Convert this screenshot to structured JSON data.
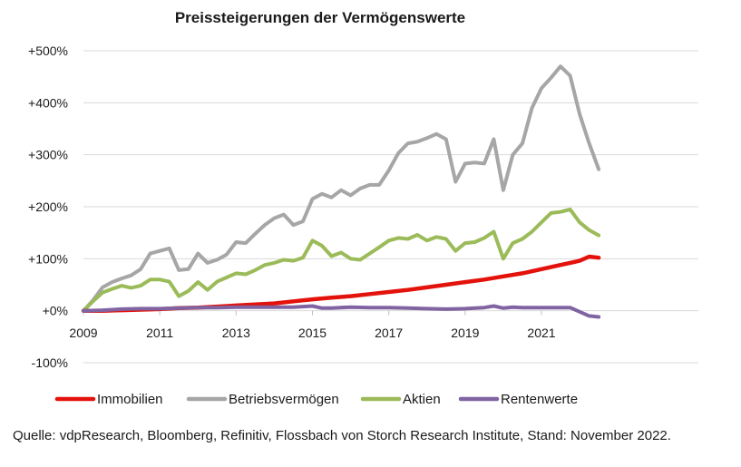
{
  "chart_data": {
    "type": "line",
    "title": "Preissteigerungen der Vermögenswerte",
    "xlabel": "",
    "ylabel": "",
    "xlim": [
      2009,
      2022.75
    ],
    "ylim": [
      -100,
      500
    ],
    "y_ticks": [
      -100,
      0,
      100,
      200,
      300,
      400,
      500
    ],
    "y_tick_labels": [
      "-100%",
      "+0%",
      "+100%",
      "+200%",
      "+300%",
      "+400%",
      "+500%"
    ],
    "x_ticks": [
      2009,
      2011,
      2013,
      2015,
      2017,
      2019,
      2021
    ],
    "x_tick_labels": [
      "2009",
      "2011",
      "2013",
      "2015",
      "2017",
      "2019",
      "2021"
    ],
    "grid": true,
    "legend_position": "bottom",
    "series": [
      {
        "name": "Immobilien",
        "color": "#e3120b",
        "x": [
          2009,
          2009.5,
          2010,
          2010.5,
          2011,
          2011.5,
          2012,
          2012.5,
          2013,
          2013.5,
          2014,
          2014.5,
          2015,
          2015.5,
          2016,
          2016.5,
          2017,
          2017.5,
          2018,
          2018.5,
          2019,
          2019.5,
          2020,
          2020.5,
          2021,
          2021.5,
          2022,
          2022.25,
          2022.5
        ],
        "y": [
          0,
          0,
          1,
          2,
          3,
          5,
          6,
          8,
          10,
          12,
          14,
          18,
          22,
          25,
          28,
          32,
          36,
          40,
          45,
          50,
          55,
          60,
          66,
          72,
          80,
          88,
          96,
          104,
          102
        ]
      },
      {
        "name": "Betriebsvermögen",
        "color": "#a6a6a6",
        "x": [
          2009,
          2009.25,
          2009.5,
          2009.75,
          2010,
          2010.25,
          2010.5,
          2010.75,
          2011,
          2011.25,
          2011.5,
          2011.75,
          2012,
          2012.25,
          2012.5,
          2012.75,
          2013,
          2013.25,
          2013.5,
          2013.75,
          2014,
          2014.25,
          2014.5,
          2014.75,
          2015,
          2015.25,
          2015.5,
          2015.75,
          2016,
          2016.25,
          2016.5,
          2016.75,
          2017,
          2017.25,
          2017.5,
          2017.75,
          2018,
          2018.25,
          2018.5,
          2018.75,
          2019,
          2019.25,
          2019.5,
          2019.75,
          2020,
          2020.25,
          2020.5,
          2020.75,
          2021,
          2021.25,
          2021.5,
          2021.75,
          2022,
          2022.25,
          2022.5
        ],
        "y": [
          0,
          20,
          45,
          55,
          62,
          68,
          80,
          110,
          115,
          120,
          78,
          80,
          110,
          92,
          98,
          108,
          132,
          130,
          148,
          165,
          178,
          185,
          165,
          172,
          215,
          225,
          218,
          232,
          222,
          235,
          242,
          242,
          270,
          303,
          322,
          325,
          332,
          340,
          330,
          248,
          283,
          285,
          283,
          330,
          232,
          300,
          322,
          390,
          428,
          448,
          470,
          452,
          378,
          322,
          272
        ]
      },
      {
        "name": "Aktien",
        "color": "#9bbb59",
        "x": [
          2009,
          2009.25,
          2009.5,
          2009.75,
          2010,
          2010.25,
          2010.5,
          2010.75,
          2011,
          2011.25,
          2011.5,
          2011.75,
          2012,
          2012.25,
          2012.5,
          2012.75,
          2013,
          2013.25,
          2013.5,
          2013.75,
          2014,
          2014.25,
          2014.5,
          2014.75,
          2015,
          2015.25,
          2015.5,
          2015.75,
          2016,
          2016.25,
          2016.5,
          2016.75,
          2017,
          2017.25,
          2017.5,
          2017.75,
          2018,
          2018.25,
          2018.5,
          2018.75,
          2019,
          2019.25,
          2019.5,
          2019.75,
          2020,
          2020.25,
          2020.5,
          2020.75,
          2021,
          2021.25,
          2021.5,
          2021.75,
          2022,
          2022.25,
          2022.5
        ],
        "y": [
          0,
          18,
          35,
          42,
          48,
          44,
          48,
          60,
          60,
          56,
          28,
          38,
          55,
          40,
          56,
          64,
          72,
          70,
          78,
          88,
          92,
          98,
          96,
          102,
          135,
          125,
          105,
          112,
          100,
          98,
          110,
          122,
          135,
          140,
          138,
          146,
          135,
          142,
          138,
          115,
          130,
          132,
          140,
          152,
          100,
          130,
          138,
          152,
          170,
          188,
          190,
          195,
          170,
          155,
          145
        ]
      },
      {
        "name": "Rentenwerte",
        "color": "#8064a2",
        "x": [
          2009,
          2009.5,
          2010,
          2010.5,
          2011,
          2011.5,
          2012,
          2012.5,
          2013,
          2013.5,
          2014,
          2014.5,
          2015,
          2015.25,
          2015.5,
          2016,
          2016.5,
          2017,
          2017.5,
          2018,
          2018.5,
          2019,
          2019.5,
          2019.75,
          2020,
          2020.25,
          2020.5,
          2021,
          2021.5,
          2021.75,
          2022,
          2022.25,
          2022.5
        ],
        "y": [
          0,
          1,
          3,
          4,
          4,
          5,
          6,
          6,
          7,
          7,
          7,
          7,
          9,
          5,
          5,
          7,
          6,
          6,
          5,
          4,
          3,
          4,
          6,
          9,
          5,
          7,
          6,
          6,
          6,
          6,
          -2,
          -10,
          -12
        ]
      }
    ]
  },
  "footer": {
    "source": "Quelle: vdpResearch, Bloomberg, Refinitiv, Flossbach von Storch Research Institute, Stand: November 2022."
  }
}
